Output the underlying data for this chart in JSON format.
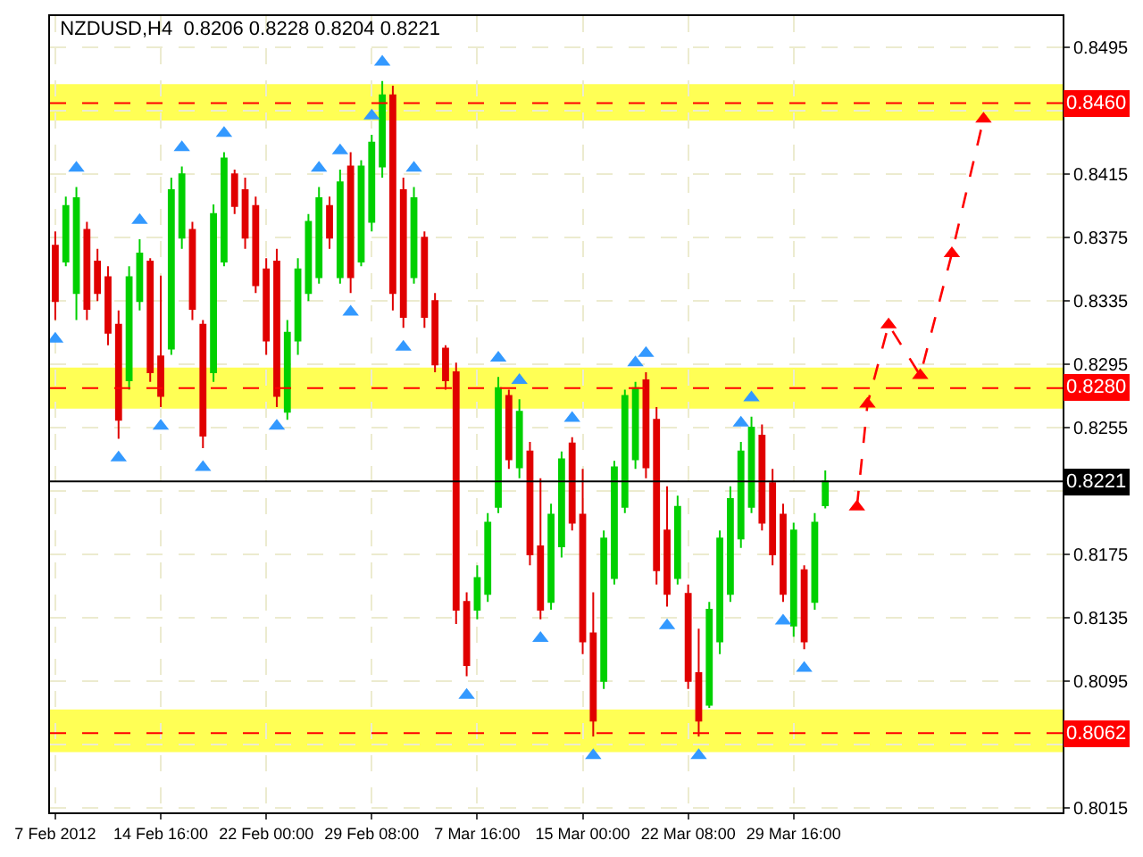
{
  "chart_data": {
    "type": "candlestick",
    "title": "NZDUSD,H4  0.8206 0.8228 0.8204 0.8221",
    "categories": [
      "7 Feb 2012",
      null,
      null,
      null,
      null,
      null,
      null,
      null,
      null,
      null,
      "14 Feb 16:00",
      null,
      null,
      null,
      null,
      null,
      null,
      null,
      null,
      null,
      "22 Feb 00:00",
      null,
      null,
      null,
      null,
      null,
      null,
      null,
      null,
      null,
      "29 Feb 08:00",
      null,
      null,
      null,
      null,
      null,
      null,
      null,
      null,
      null,
      "7 Mar 16:00",
      null,
      null,
      null,
      null,
      null,
      null,
      null,
      null,
      null,
      "15 Mar 00:00",
      null,
      null,
      null,
      null,
      null,
      null,
      null,
      null,
      null,
      "22 Mar 08:00",
      null,
      null,
      null,
      null,
      null,
      null,
      null,
      null,
      null,
      "29 Mar 16:00",
      null,
      null,
      null,
      null,
      null,
      null,
      null,
      null,
      null,
      null,
      null,
      null,
      null,
      null,
      null,
      null,
      null,
      null,
      null,
      null,
      null,
      null,
      null,
      null,
      null
    ],
    "ohlc": [
      [
        0.837,
        0.8379,
        0.8323,
        0.8335
      ],
      [
        0.836,
        0.8401,
        0.8357,
        0.8395
      ],
      [
        0.834,
        0.8407,
        0.8323,
        0.84
      ],
      [
        0.838,
        0.8385,
        0.8323,
        0.833
      ],
      [
        0.836,
        0.8368,
        0.8335,
        0.834
      ],
      [
        0.835,
        0.8357,
        0.8307,
        0.8315
      ],
      [
        0.832,
        0.8329,
        0.8248,
        0.826
      ],
      [
        0.8285,
        0.8357,
        0.8279,
        0.835
      ],
      [
        0.8335,
        0.8374,
        0.8329,
        0.8365
      ],
      [
        0.836,
        0.8362,
        0.8284,
        0.829
      ],
      [
        0.83,
        0.8351,
        0.8268,
        0.8275
      ],
      [
        0.8305,
        0.8413,
        0.8301,
        0.8405
      ],
      [
        0.8375,
        0.842,
        0.8368,
        0.8415
      ],
      [
        0.838,
        0.8385,
        0.8323,
        0.833
      ],
      [
        0.832,
        0.8323,
        0.8242,
        0.825
      ],
      [
        0.829,
        0.8396,
        0.8284,
        0.839
      ],
      [
        0.836,
        0.8429,
        0.8357,
        0.8425
      ],
      [
        0.8415,
        0.8418,
        0.839,
        0.8395
      ],
      [
        0.8405,
        0.8413,
        0.8368,
        0.8375
      ],
      [
        0.8395,
        0.8401,
        0.834,
        0.8345
      ],
      [
        0.8355,
        0.8362,
        0.8301,
        0.831
      ],
      [
        0.836,
        0.8368,
        0.8268,
        0.8275
      ],
      [
        0.8265,
        0.8323,
        0.826,
        0.8315
      ],
      [
        0.831,
        0.8362,
        0.8301,
        0.8355
      ],
      [
        0.834,
        0.839,
        0.8335,
        0.8385
      ],
      [
        0.835,
        0.8407,
        0.8346,
        0.84
      ],
      [
        0.8395,
        0.8401,
        0.8368,
        0.8375
      ],
      [
        0.835,
        0.8418,
        0.8346,
        0.841
      ],
      [
        0.842,
        0.8429,
        0.834,
        0.835
      ],
      [
        0.836,
        0.8424,
        0.8357,
        0.842
      ],
      [
        0.8385,
        0.844,
        0.8379,
        0.8435
      ],
      [
        0.842,
        0.8474,
        0.8413,
        0.8465
      ],
      [
        0.8465,
        0.8471,
        0.8329,
        0.834
      ],
      [
        0.8405,
        0.8413,
        0.8318,
        0.8325
      ],
      [
        0.835,
        0.8407,
        0.8346,
        0.84
      ],
      [
        0.8375,
        0.8379,
        0.8318,
        0.8325
      ],
      [
        0.8335,
        0.834,
        0.829,
        0.8295
      ],
      [
        0.8305,
        0.8307,
        0.8279,
        0.8285
      ],
      [
        0.829,
        0.8296,
        0.8131,
        0.814
      ],
      [
        0.8145,
        0.8151,
        0.8098,
        0.8105
      ],
      [
        0.814,
        0.8168,
        0.8134,
        0.816
      ],
      [
        0.815,
        0.8201,
        0.8145,
        0.8195
      ],
      [
        0.8205,
        0.8287,
        0.8201,
        0.828
      ],
      [
        0.8275,
        0.8279,
        0.8229,
        0.8235
      ],
      [
        0.823,
        0.8273,
        0.8223,
        0.8265
      ],
      [
        0.824,
        0.8246,
        0.8168,
        0.8175
      ],
      [
        0.818,
        0.8223,
        0.8134,
        0.814
      ],
      [
        0.8145,
        0.8207,
        0.814,
        0.82
      ],
      [
        0.818,
        0.824,
        0.8173,
        0.8235
      ],
      [
        0.8245,
        0.8249,
        0.819,
        0.8195
      ],
      [
        0.82,
        0.8229,
        0.8112,
        0.812
      ],
      [
        0.8125,
        0.8151,
        0.806,
        0.807
      ],
      [
        0.8095,
        0.819,
        0.809,
        0.8185
      ],
      [
        0.816,
        0.8234,
        0.8156,
        0.823
      ],
      [
        0.8205,
        0.8279,
        0.8201,
        0.8275
      ],
      [
        0.8235,
        0.8284,
        0.8229,
        0.828
      ],
      [
        0.8285,
        0.829,
        0.8223,
        0.823
      ],
      [
        0.826,
        0.8268,
        0.8156,
        0.8165
      ],
      [
        0.819,
        0.8218,
        0.8142,
        0.815
      ],
      [
        0.816,
        0.8212,
        0.8156,
        0.8205
      ],
      [
        0.815,
        0.8156,
        0.809,
        0.8095
      ],
      [
        0.81,
        0.8128,
        0.806,
        0.807
      ],
      [
        0.808,
        0.8145,
        0.8078,
        0.814
      ],
      [
        0.812,
        0.819,
        0.8112,
        0.8185
      ],
      [
        0.815,
        0.8218,
        0.8145,
        0.821
      ],
      [
        0.8185,
        0.8246,
        0.8179,
        0.824
      ],
      [
        0.8205,
        0.8262,
        0.8201,
        0.8255
      ],
      [
        0.825,
        0.8257,
        0.819,
        0.8195
      ],
      [
        0.822,
        0.8229,
        0.8168,
        0.8175
      ],
      [
        0.82,
        0.8207,
        0.8145,
        0.815
      ],
      [
        0.813,
        0.8195,
        0.8123,
        0.819
      ],
      [
        0.8165,
        0.8168,
        0.8115,
        0.812
      ],
      [
        0.8145,
        0.8201,
        0.814,
        0.8195
      ],
      [
        0.8206,
        0.8228,
        0.8204,
        0.8221
      ],
      null,
      null,
      null,
      null,
      null,
      null,
      null,
      null,
      null,
      null,
      null,
      null,
      null,
      null,
      null,
      null,
      null,
      null,
      null,
      null,
      null,
      null
    ],
    "colors": [
      "#e00000",
      "#00d000",
      "#00d000",
      "#e00000",
      "#e00000",
      "#e00000",
      "#e00000",
      "#00d000",
      "#00d000",
      "#e00000",
      "#e00000",
      "#00d000",
      "#00d000",
      "#e00000",
      "#e00000",
      "#00d000",
      "#00d000",
      "#e00000",
      "#e00000",
      "#e00000",
      "#e00000",
      "#e00000",
      "#00d000",
      "#00d000",
      "#00d000",
      "#00d000",
      "#e00000",
      "#00d000",
      "#e00000",
      "#00d000",
      "#00d000",
      "#00d000",
      "#e00000",
      "#e00000",
      "#00d000",
      "#e00000",
      "#e00000",
      "#e00000",
      "#e00000",
      "#e00000",
      "#00d000",
      "#00d000",
      "#00d000",
      "#e00000",
      "#00d000",
      "#e00000",
      "#e00000",
      "#00d000",
      "#00d000",
      "#e00000",
      "#e00000",
      "#e00000",
      "#00d000",
      "#00d000",
      "#00d000",
      "#00d000",
      "#e00000",
      "#e00000",
      "#e00000",
      "#00d000",
      "#e00000",
      "#e00000",
      "#00d000",
      "#00d000",
      "#00d000",
      "#00d000",
      "#00d000",
      "#e00000",
      "#e00000",
      "#e00000",
      "#00d000",
      "#e00000",
      "#00d000",
      "#00d000",
      null,
      null,
      null,
      null,
      null,
      null,
      null,
      null,
      null,
      null,
      null,
      null,
      null,
      null,
      null,
      null,
      null,
      null,
      null,
      null,
      null,
      null
    ],
    "series": [
      {
        "type": "scatter",
        "color": "#3399ff",
        "marker": "triangle",
        "values": [
          null,
          null,
          0.8419,
          null,
          null,
          null,
          null,
          null,
          0.8386,
          null,
          null,
          null,
          0.8432,
          null,
          null,
          null,
          0.8441,
          null,
          null,
          null,
          null,
          null,
          null,
          null,
          null,
          0.8419,
          null,
          0.843,
          null,
          null,
          0.8452,
          0.8486,
          null,
          null,
          0.8419,
          null,
          null,
          null,
          null,
          null,
          null,
          null,
          0.8299,
          null,
          0.8285,
          null,
          null,
          null,
          null,
          0.8261,
          null,
          null,
          null,
          null,
          null,
          0.8296,
          0.8302,
          null,
          null,
          null,
          null,
          null,
          null,
          null,
          null,
          0.8258,
          0.8274,
          null,
          null,
          null,
          null,
          null,
          null,
          null,
          null,
          null,
          null,
          null,
          null,
          null,
          null,
          null,
          null,
          null,
          null,
          null,
          null,
          null,
          null,
          null,
          null,
          null,
          null,
          null,
          null,
          null
        ]
      },
      {
        "type": "scatter",
        "color": "#3399ff",
        "marker": "triangle",
        "values": [
          0.8311,
          null,
          null,
          null,
          null,
          null,
          0.8236,
          null,
          null,
          null,
          0.8256,
          null,
          null,
          null,
          0.823,
          null,
          null,
          null,
          null,
          null,
          null,
          0.8256,
          null,
          null,
          null,
          null,
          null,
          null,
          0.8328,
          null,
          null,
          null,
          null,
          0.8306,
          null,
          null,
          null,
          null,
          null,
          0.8086,
          null,
          null,
          null,
          null,
          null,
          null,
          0.8122,
          null,
          null,
          null,
          null,
          0.8048,
          null,
          null,
          null,
          null,
          null,
          null,
          0.813,
          null,
          null,
          0.8048,
          null,
          null,
          null,
          null,
          null,
          null,
          null,
          0.8133,
          null,
          0.8103,
          null,
          null,
          null,
          null,
          null,
          null,
          null,
          null,
          null,
          null,
          null,
          null,
          null,
          null,
          null,
          null,
          null,
          null,
          null,
          null,
          null,
          null,
          null,
          null
        ]
      },
      {
        "type": "line",
        "color": "#ff0000",
        "line_style": "dashed",
        "marker": "triangle",
        "values": [
          null,
          null,
          null,
          null,
          null,
          null,
          null,
          null,
          null,
          null,
          null,
          null,
          null,
          null,
          null,
          null,
          null,
          null,
          null,
          null,
          null,
          null,
          null,
          null,
          null,
          null,
          null,
          null,
          null,
          null,
          null,
          null,
          null,
          null,
          null,
          null,
          null,
          null,
          null,
          null,
          null,
          null,
          null,
          null,
          null,
          null,
          null,
          null,
          null,
          null,
          null,
          null,
          null,
          null,
          null,
          null,
          null,
          null,
          null,
          null,
          null,
          null,
          null,
          null,
          null,
          null,
          null,
          null,
          null,
          null,
          null,
          null,
          null,
          null,
          null,
          null,
          0.8205,
          0.827,
          null,
          0.832,
          null,
          null,
          0.8288,
          null,
          null,
          0.8365,
          null,
          null,
          0.845,
          null,
          null,
          null,
          null,
          null,
          null,
          null
        ]
      }
    ],
    "ylim": [
      0.8012,
      0.8515
    ],
    "yticks": [
      0.8495,
      {
        "value": 0.8455,
        "label": null
      },
      0.8415,
      0.8375,
      0.8335,
      0.8295,
      0.8255,
      {
        "value": 0.8215,
        "label": null
      },
      0.8175,
      0.8135,
      0.8095,
      {
        "value": 0.8055,
        "label": null
      },
      0.8015
    ],
    "bands": [
      {
        "axis": "y",
        "from": 0.8449,
        "to": 0.8472,
        "color": "#ffff55"
      },
      {
        "axis": "y",
        "from": 0.8267,
        "to": 0.8293,
        "color": "#ffff55"
      },
      {
        "axis": "y",
        "from": 0.805,
        "to": 0.8077,
        "color": "#ffff55"
      }
    ],
    "ref_lines": [
      {
        "axis": "y",
        "value": 0.846,
        "label": "0.8460",
        "color": "#ff0000",
        "line_style": "dashed"
      },
      {
        "axis": "y",
        "value": 0.828,
        "label": "0.8280",
        "color": "#ff0000",
        "line_style": "dashed"
      },
      {
        "axis": "y",
        "value": 0.8062,
        "label": "0.8062",
        "color": "#ff0000",
        "line_style": "dashed"
      },
      {
        "axis": "y",
        "value": 0.8221,
        "label": "0.8221",
        "color": "#000000",
        "line_style": "solid"
      }
    ],
    "grid": true
  }
}
